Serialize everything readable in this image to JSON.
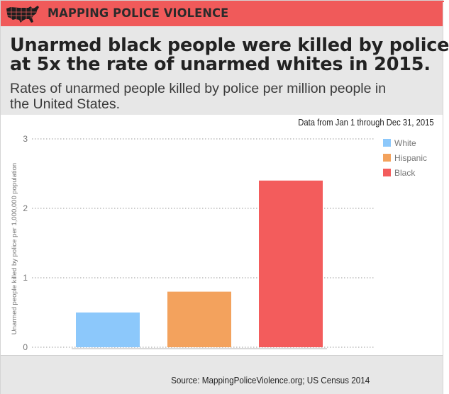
{
  "brand": {
    "name": "MAPPING POLICE VIOLENCE",
    "accent_color": "#f05a5a",
    "logo_icon": "us-map-icon"
  },
  "header": {
    "headline_lines": [
      "Unarmed black people were killed by police",
      "at 5x the rate of unarmed whites in 2015."
    ],
    "subheading_lines": [
      "Rates of unarmed people killed by police per million people in",
      "the United States."
    ]
  },
  "date_note": "Data from Jan 1 through Dec 31, 2015",
  "source": "Source: MappingPoliceViolence.org; US Census 2014",
  "chart_data": {
    "type": "bar",
    "title": "Unarmed black people were killed by police at 5x the rate of unarmed whites in 2015.",
    "xlabel": "",
    "ylabel": "Unarmed people killed by police per 1,000,000 population",
    "ylim": [
      0,
      3
    ],
    "yticks": [
      0,
      1,
      2,
      3
    ],
    "yticklabels": [
      "0",
      "1",
      "2",
      "3"
    ],
    "grid": true,
    "legend_position": "top-right",
    "series": [
      {
        "name": "White",
        "values": [
          0.5
        ],
        "color": "#8cc8fb"
      },
      {
        "name": "Hispanic",
        "values": [
          0.8
        ],
        "color": "#f3a25d"
      },
      {
        "name": "Black",
        "values": [
          2.4
        ],
        "color": "#f35c5c"
      }
    ]
  }
}
